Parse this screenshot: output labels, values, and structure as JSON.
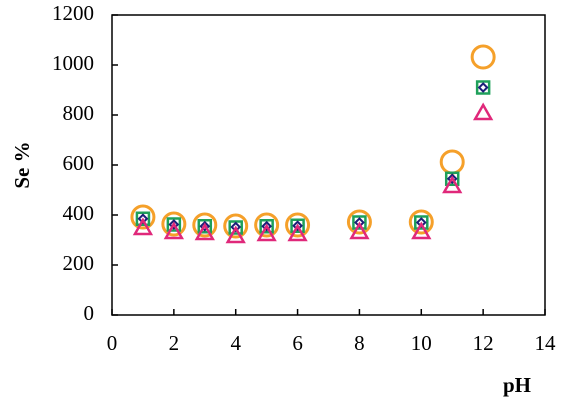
{
  "chart_data": {
    "type": "scatter",
    "x_label": "pH",
    "y_label": "Se %",
    "x": [
      1,
      2,
      3,
      4,
      5,
      6,
      8,
      10,
      11,
      12
    ],
    "series": [
      {
        "color": "#f5a02a",
        "marker": "circle",
        "values": [
          392,
          364,
          360,
          356,
          360,
          360,
          372,
          372,
          612,
          1032
        ]
      },
      {
        "color": "#1fa05a",
        "marker": "square",
        "values": [
          385,
          362,
          355,
          350,
          355,
          357,
          370,
          370,
          545,
          910
        ]
      },
      {
        "color": "#1c1f78",
        "marker": "diamond",
        "values": [
          385,
          362,
          355,
          352,
          355,
          357,
          370,
          370,
          545,
          910
        ]
      },
      {
        "color": "#e0287a",
        "marker": "triangle",
        "values": [
          348,
          332,
          328,
          316,
          324,
          324,
          332,
          332,
          516,
          808
        ]
      }
    ],
    "xlim": [
      0,
      14
    ],
    "xticks": [
      0,
      2,
      4,
      6,
      8,
      10,
      12,
      14
    ],
    "ylim": [
      0,
      1200
    ],
    "yticks": [
      0,
      200,
      400,
      600,
      800,
      1000,
      1200
    ]
  }
}
